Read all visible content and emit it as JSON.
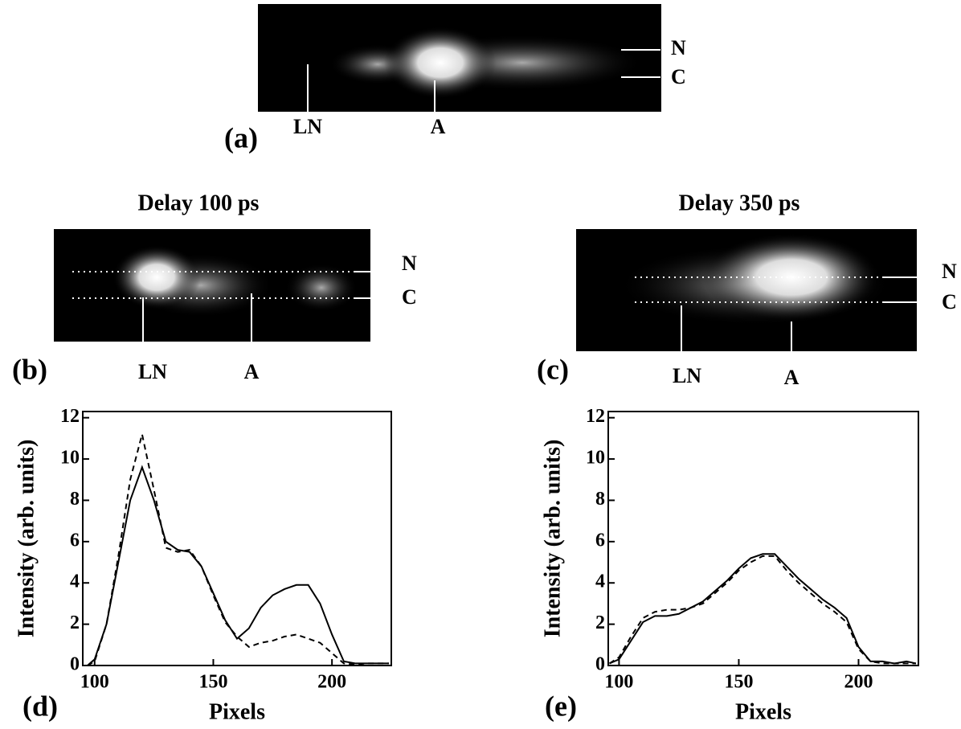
{
  "images": [
    {
      "panel": "(a)",
      "markers": [
        "N",
        "C",
        "LN",
        "A"
      ]
    },
    {
      "title": "Delay 100 ps",
      "panel": "(b)",
      "markers": [
        "N",
        "C",
        "LN",
        "A"
      ]
    },
    {
      "title": "Delay 350 ps",
      "panel": "(c)",
      "markers": [
        "N",
        "C",
        "LN",
        "A"
      ]
    }
  ],
  "chart_data": [
    {
      "type": "line",
      "panel": "(d)",
      "xlabel": "Pixels",
      "ylabel": "Intensity (arb. units)",
      "xlim": [
        95,
        225
      ],
      "ylim": [
        0,
        12.3
      ],
      "xticks": [
        100,
        150,
        200
      ],
      "yticks": [
        0,
        2,
        4,
        6,
        8,
        10,
        12
      ],
      "x": [
        97,
        100,
        105,
        110,
        115,
        120,
        125,
        130,
        135,
        140,
        145,
        150,
        155,
        160,
        165,
        170,
        175,
        180,
        185,
        190,
        195,
        200,
        205,
        210,
        215,
        220,
        224
      ],
      "series": [
        {
          "linestyle": "solid",
          "color": "#000",
          "values": [
            0,
            0.3,
            2,
            5,
            8,
            9.6,
            8,
            6,
            5.6,
            5.5,
            4.8,
            3.5,
            2.2,
            1.3,
            1.8,
            2.8,
            3.4,
            3.7,
            3.9,
            3.9,
            3,
            1.5,
            0.2,
            0.1,
            0.1,
            0.1,
            0.1
          ]
        },
        {
          "linestyle": "dashed",
          "color": "#000",
          "values": [
            0,
            0.2,
            2,
            5.3,
            9,
            11.2,
            8.5,
            5.7,
            5.5,
            5.6,
            4.8,
            3.4,
            2.1,
            1.4,
            0.9,
            1.1,
            1.2,
            1.4,
            1.5,
            1.3,
            1.1,
            0.6,
            0.1,
            0.05,
            0.1,
            0.1,
            0.1
          ]
        }
      ]
    },
    {
      "type": "line",
      "panel": "(e)",
      "xlabel": "Pixels",
      "ylabel": "Intensity (arb. units)",
      "xlim": [
        95.5,
        225
      ],
      "ylim": [
        0,
        12.3
      ],
      "xticks": [
        100,
        150,
        200
      ],
      "yticks": [
        0,
        2,
        4,
        6,
        8,
        10,
        12
      ],
      "x": [
        96,
        100,
        105,
        110,
        115,
        120,
        125,
        130,
        135,
        140,
        145,
        150,
        155,
        160,
        165,
        170,
        175,
        180,
        185,
        190,
        195,
        200,
        205,
        210,
        215,
        220,
        224
      ],
      "series": [
        {
          "linestyle": "solid",
          "color": "#000",
          "values": [
            0.1,
            0.3,
            1.2,
            2.1,
            2.4,
            2.4,
            2.5,
            2.8,
            3.1,
            3.6,
            4.1,
            4.7,
            5.2,
            5.4,
            5.4,
            4.8,
            4.2,
            3.7,
            3.2,
            2.8,
            2.3,
            0.9,
            0.2,
            0.2,
            0.1,
            0.2,
            0.1
          ]
        },
        {
          "linestyle": "dashed",
          "color": "#000",
          "values": [
            0.1,
            0.4,
            1.4,
            2.3,
            2.6,
            2.7,
            2.7,
            2.8,
            3.0,
            3.5,
            4.0,
            4.6,
            5.0,
            5.3,
            5.3,
            4.6,
            4.0,
            3.5,
            3.0,
            2.6,
            2.1,
            0.8,
            0.2,
            0.1,
            0.1,
            0.1,
            0.1
          ]
        }
      ]
    }
  ]
}
